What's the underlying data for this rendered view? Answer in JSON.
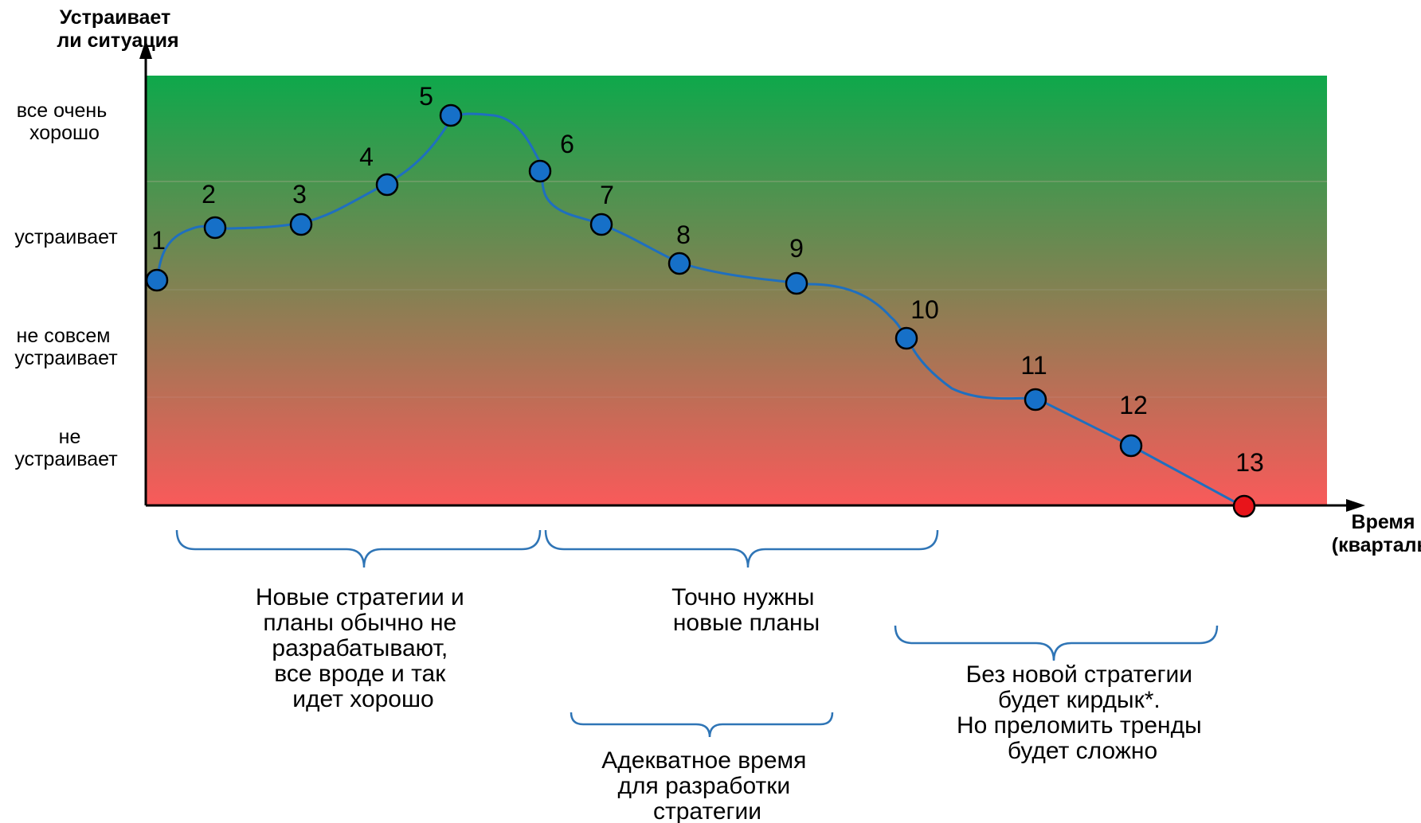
{
  "y_axis": {
    "title_lines": [
      "Устраивает",
      "ли ситуация"
    ],
    "levels": [
      {
        "lines": [
          "все очень",
          "хорошо"
        ]
      },
      {
        "lines": [
          "устраивает"
        ]
      },
      {
        "lines": [
          "не совсем",
          "устраивает"
        ]
      },
      {
        "lines": [
          "не",
          "устраивает"
        ]
      }
    ]
  },
  "x_axis": {
    "title_lines": [
      "Время",
      "(кварталы)"
    ]
  },
  "points": [
    {
      "label": "1",
      "color": "#1670c8"
    },
    {
      "label": "2",
      "color": "#1670c8"
    },
    {
      "label": "3",
      "color": "#1670c8"
    },
    {
      "label": "4",
      "color": "#1670c8"
    },
    {
      "label": "5",
      "color": "#1670c8"
    },
    {
      "label": "6",
      "color": "#1670c8"
    },
    {
      "label": "7",
      "color": "#1670c8"
    },
    {
      "label": "8",
      "color": "#1670c8"
    },
    {
      "label": "9",
      "color": "#1670c8"
    },
    {
      "label": "10",
      "color": "#1670c8"
    },
    {
      "label": "11",
      "color": "#1670c8"
    },
    {
      "label": "12",
      "color": "#1670c8"
    },
    {
      "label": "13",
      "color": "#e8141a"
    }
  ],
  "brackets": [
    {
      "lines": [
        "Новые стратегии и",
        "планы обычно не",
        "разрабатывают,",
        "все вроде и так",
        "идет хорошо"
      ]
    },
    {
      "lines": [
        "Точно нужны",
        "новые планы"
      ]
    },
    {
      "lines": [
        "Адекватное время",
        "для разработки",
        "стратегии"
      ]
    },
    {
      "lines": [
        "Без новой стратегии",
        "будет кирдык*.",
        "Но преломить тренды",
        "будет сложно"
      ]
    }
  ],
  "colors": {
    "gradient_top": "#0ea84b",
    "gradient_bottom": "#f95a5a",
    "curve": "#1f6fbf",
    "point_fill": "#1670c8",
    "last_point_fill": "#e8141a",
    "bracket": "#2f75b6",
    "axis": "#000000"
  }
}
